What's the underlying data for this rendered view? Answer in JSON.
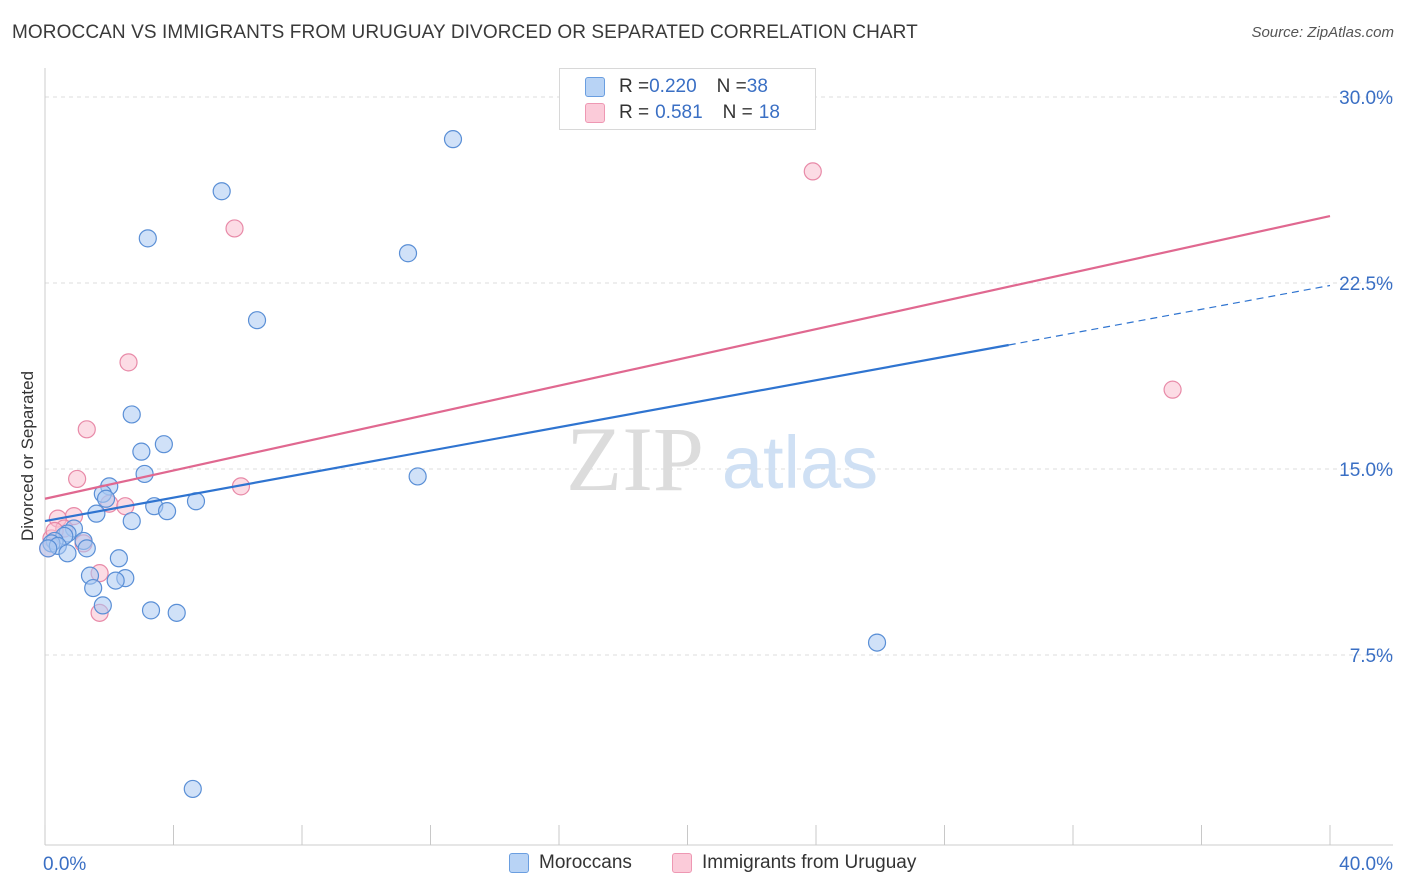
{
  "header": {
    "title": "MOROCCAN VS IMMIGRANTS FROM URUGUAY DIVORCED OR SEPARATED CORRELATION CHART",
    "source": "Source: ZipAtlas.com"
  },
  "watermark": {
    "zip": "ZIP",
    "atlas": "atlas"
  },
  "stats": [
    {
      "r_label": "R = ",
      "r_value": "0.220",
      "n_label": "N = ",
      "n_value": "38",
      "color": "#a8c8f0"
    },
    {
      "r_label": "R = ",
      "r_value": "0.581",
      "n_label": "N = ",
      "n_value": "18",
      "color": "#f8b8cc"
    }
  ],
  "colors": {
    "blue_fill": "#aac9f2",
    "blue_stroke": "#5a8fd6",
    "blue_line": "#2f74d0",
    "pink_fill": "#f9c0d0",
    "pink_stroke": "#e88aa8",
    "pink_line": "#e06890",
    "tick_label": "#3a6fc4",
    "grid": "#dcdcdc"
  },
  "chart_data": {
    "type": "scatter",
    "title": "MOROCCAN VS IMMIGRANTS FROM URUGUAY DIVORCED OR SEPARATED CORRELATION CHART",
    "xlabel": "",
    "ylabel": "Divorced or Separated",
    "xlim": [
      0,
      40
    ],
    "ylim": [
      0,
      31
    ],
    "x_tick_labels": [
      "0.0%",
      "40.0%"
    ],
    "y_ticks": [
      7.5,
      15.0,
      22.5,
      30.0
    ],
    "y_tick_labels": [
      "7.5%",
      "15.0%",
      "22.5%",
      "30.0%"
    ],
    "grid": true,
    "legend_position": "bottom",
    "series": [
      {
        "name": "Moroccans",
        "points": [
          [
            12.7,
            28.3
          ],
          [
            5.5,
            26.2
          ],
          [
            3.2,
            24.3
          ],
          [
            11.3,
            23.7
          ],
          [
            6.6,
            21.0
          ],
          [
            2.7,
            17.2
          ],
          [
            3.7,
            16.0
          ],
          [
            3.0,
            15.7
          ],
          [
            11.6,
            14.7
          ],
          [
            3.1,
            14.8
          ],
          [
            2.0,
            14.3
          ],
          [
            1.8,
            14.0
          ],
          [
            1.9,
            13.8
          ],
          [
            4.7,
            13.7
          ],
          [
            3.4,
            13.5
          ],
          [
            3.8,
            13.3
          ],
          [
            1.6,
            13.2
          ],
          [
            2.7,
            12.9
          ],
          [
            0.9,
            12.6
          ],
          [
            0.7,
            12.4
          ],
          [
            0.6,
            12.3
          ],
          [
            0.3,
            12.1
          ],
          [
            0.2,
            12.0
          ],
          [
            1.2,
            12.1
          ],
          [
            0.4,
            11.9
          ],
          [
            1.3,
            11.8
          ],
          [
            0.7,
            11.6
          ],
          [
            0.1,
            11.8
          ],
          [
            2.3,
            11.4
          ],
          [
            1.4,
            10.7
          ],
          [
            2.5,
            10.6
          ],
          [
            2.2,
            10.5
          ],
          [
            1.5,
            10.2
          ],
          [
            1.8,
            9.5
          ],
          [
            3.3,
            9.3
          ],
          [
            4.1,
            9.2
          ],
          [
            25.9,
            8.0
          ],
          [
            4.6,
            2.1
          ]
        ]
      },
      {
        "name": "Immigrants from Uruguay",
        "points": [
          [
            23.9,
            27.0
          ],
          [
            5.9,
            24.7
          ],
          [
            2.6,
            19.3
          ],
          [
            1.3,
            16.6
          ],
          [
            1.0,
            14.6
          ],
          [
            6.1,
            14.3
          ],
          [
            2.0,
            13.6
          ],
          [
            2.5,
            13.5
          ],
          [
            0.9,
            13.1
          ],
          [
            0.4,
            13.0
          ],
          [
            0.6,
            12.6
          ],
          [
            0.2,
            12.2
          ],
          [
            1.2,
            12.0
          ],
          [
            0.1,
            11.8
          ],
          [
            35.1,
            18.2
          ],
          [
            1.7,
            10.8
          ],
          [
            1.7,
            9.2
          ],
          [
            0.3,
            12.5
          ]
        ]
      }
    ],
    "trend_lines": [
      {
        "series": "Moroccans",
        "x": [
          0,
          30
        ],
        "y": [
          12.9,
          20.0
        ],
        "dashed_x": [
          30,
          40
        ],
        "dashed_y": [
          20.0,
          22.4
        ]
      },
      {
        "series": "Immigrants from Uruguay",
        "x": [
          0,
          40
        ],
        "y": [
          13.8,
          25.2
        ]
      }
    ]
  }
}
